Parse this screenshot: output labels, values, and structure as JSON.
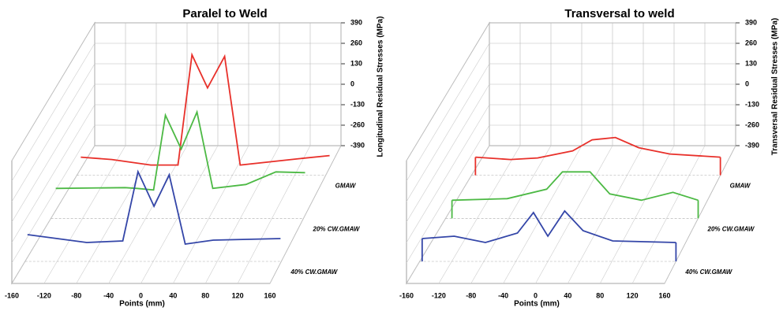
{
  "chart_data": [
    {
      "type": "line3d",
      "title": "Paralel to Weld",
      "x_label": "Points (mm)",
      "y_label": "Longitudinal Residual Stresses (MPa)",
      "xlim": [
        -160,
        160
      ],
      "xticks": [
        -160,
        -120,
        -80,
        -40,
        0,
        40,
        80,
        120,
        160
      ],
      "ylim": [
        -390,
        390
      ],
      "yticks": [
        -390,
        -260,
        -130,
        0,
        130,
        260,
        390
      ],
      "grid": true,
      "drop_lines": false,
      "series": [
        {
          "name": "GMAW",
          "color": "#e8302a",
          "x": [
            -155,
            -115,
            -65,
            -30,
            -12,
            8,
            30,
            50,
            125,
            165
          ],
          "values": [
            -275,
            -290,
            -325,
            -325,
            375,
            165,
            365,
            -325,
            -285,
            -265
          ]
        },
        {
          "name": "20% CW.GMAW",
          "color": "#4cb944",
          "x": [
            -154,
            -66,
            -51,
            -30,
            -15,
            5,
            25,
            45,
            87,
            125,
            162
          ],
          "values": [
            -200,
            -195,
            -200,
            -210,
            265,
            50,
            285,
            -200,
            -175,
            -95,
            -100
          ]
        },
        {
          "name": "40% CW.GMAW",
          "color": "#3446a8",
          "x": [
            -157,
            -83,
            -38,
            -19,
            1,
            20,
            40,
            75,
            159
          ],
          "values": [
            -220,
            -270,
            -260,
            180,
            -40,
            160,
            -280,
            -255,
            -245
          ]
        }
      ]
    },
    {
      "type": "line3d",
      "title": "Transversal to weld",
      "x_label": "Points (mm)",
      "y_label": "Transversal Residual Stresses (MPa)",
      "xlim": [
        -160,
        160
      ],
      "xticks": [
        -160,
        -120,
        -80,
        -40,
        0,
        40,
        80,
        120,
        160
      ],
      "ylim": [
        -390,
        390
      ],
      "yticks": [
        -390,
        -260,
        -130,
        0,
        130,
        260,
        390
      ],
      "grid": true,
      "drop_lines": true,
      "series": [
        {
          "name": "GMAW",
          "color": "#e8302a",
          "x": [
            -155,
            -110,
            -75,
            -30,
            -5,
            25,
            55,
            95,
            160
          ],
          "values": [
            -275,
            -290,
            -280,
            -235,
            -165,
            -150,
            -215,
            -255,
            -275
          ]
        },
        {
          "name": "20% CW.GMAW",
          "color": "#4cb944",
          "x": [
            -152,
            -82,
            -32,
            -12,
            23,
            48,
            88,
            128,
            160
          ],
          "values": [
            -275,
            -265,
            -205,
            -95,
            -95,
            -235,
            -275,
            -225,
            -275
          ]
        },
        {
          "name": "40% CW.GMAW",
          "color": "#3446a8",
          "x": [
            -157,
            -117,
            -78,
            -38,
            -18,
            0,
            21,
            44,
            81,
            160
          ],
          "values": [
            -245,
            -230,
            -270,
            -210,
            -80,
            -230,
            -70,
            -195,
            -260,
            -270
          ]
        }
      ]
    }
  ]
}
